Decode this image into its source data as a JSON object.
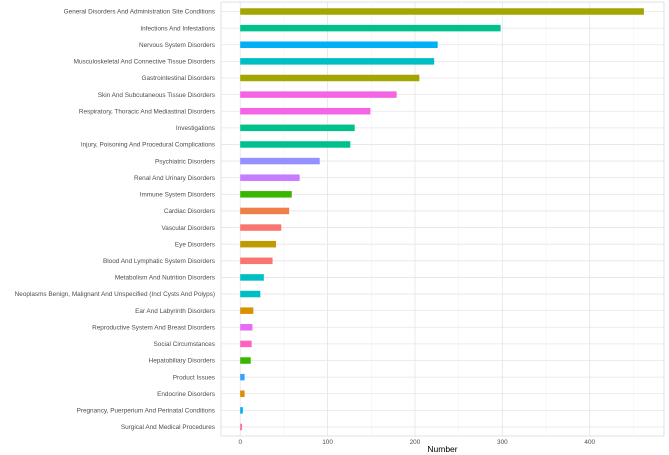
{
  "chart_data": {
    "type": "bar",
    "orientation": "horizontal",
    "title": "",
    "xlabel": "Number",
    "ylabel": "",
    "xlim": [
      -22,
      485
    ],
    "xticks": [
      0,
      100,
      200,
      300,
      400
    ],
    "grid": true,
    "legend": "none",
    "categories": [
      "General Disorders And Administration Site Conditions",
      "Infections And Infestations",
      "Nervous System Disorders",
      "Musculoskeletal And Connective Tissue Disorders",
      "Gastrointestinal Disorders",
      "Skin And Subcutaneous Tissue Disorders",
      "Respiratory, Thoracic And Mediastinal Disorders",
      "Investigations",
      "Injury, Poisoning And Procedural Complications",
      "Psychiatric Disorders",
      "Renal And Urinary Disorders",
      "Immune System Disorders",
      "Cardiac Disorders",
      "Vascular Disorders",
      "Eye Disorders",
      "Blood And Lymphatic System Disorders",
      "Metabolism And Nutrition Disorders",
      "Neoplasms Benign, Malignant And Unspecified (Incl Cysts And Polyps)",
      "Ear And Labyrinth Disorders",
      "Reproductive System And Breast Disorders",
      "Social Circumstances",
      "Hepatobiliary Disorders",
      "Product Issues",
      "Endocrine Disorders",
      "Pregnancy, Puerperium And Perinatal Conditions",
      "Surgical And Medical Procedures"
    ],
    "values": [
      462,
      298,
      226,
      222,
      205,
      179,
      149,
      131,
      126,
      91,
      68,
      59,
      56,
      47,
      41,
      37,
      27,
      23,
      15,
      14,
      13,
      12,
      5,
      5,
      3,
      2
    ],
    "colors": [
      "#a3a500",
      "#00c08b",
      "#00b0f6",
      "#00bfc4",
      "#a3a500",
      "#f564e3",
      "#f564e3",
      "#00c08b",
      "#00c08b",
      "#9590ff",
      "#c77cff",
      "#39b600",
      "#ef7f49",
      "#f8766d",
      "#bf9a00",
      "#f8766d",
      "#00bfc4",
      "#00bfc4",
      "#d89000",
      "#e76bf3",
      "#ff62bc",
      "#39b600",
      "#35a2ff",
      "#d89000",
      "#00b0f6",
      "#ff6c91"
    ]
  }
}
